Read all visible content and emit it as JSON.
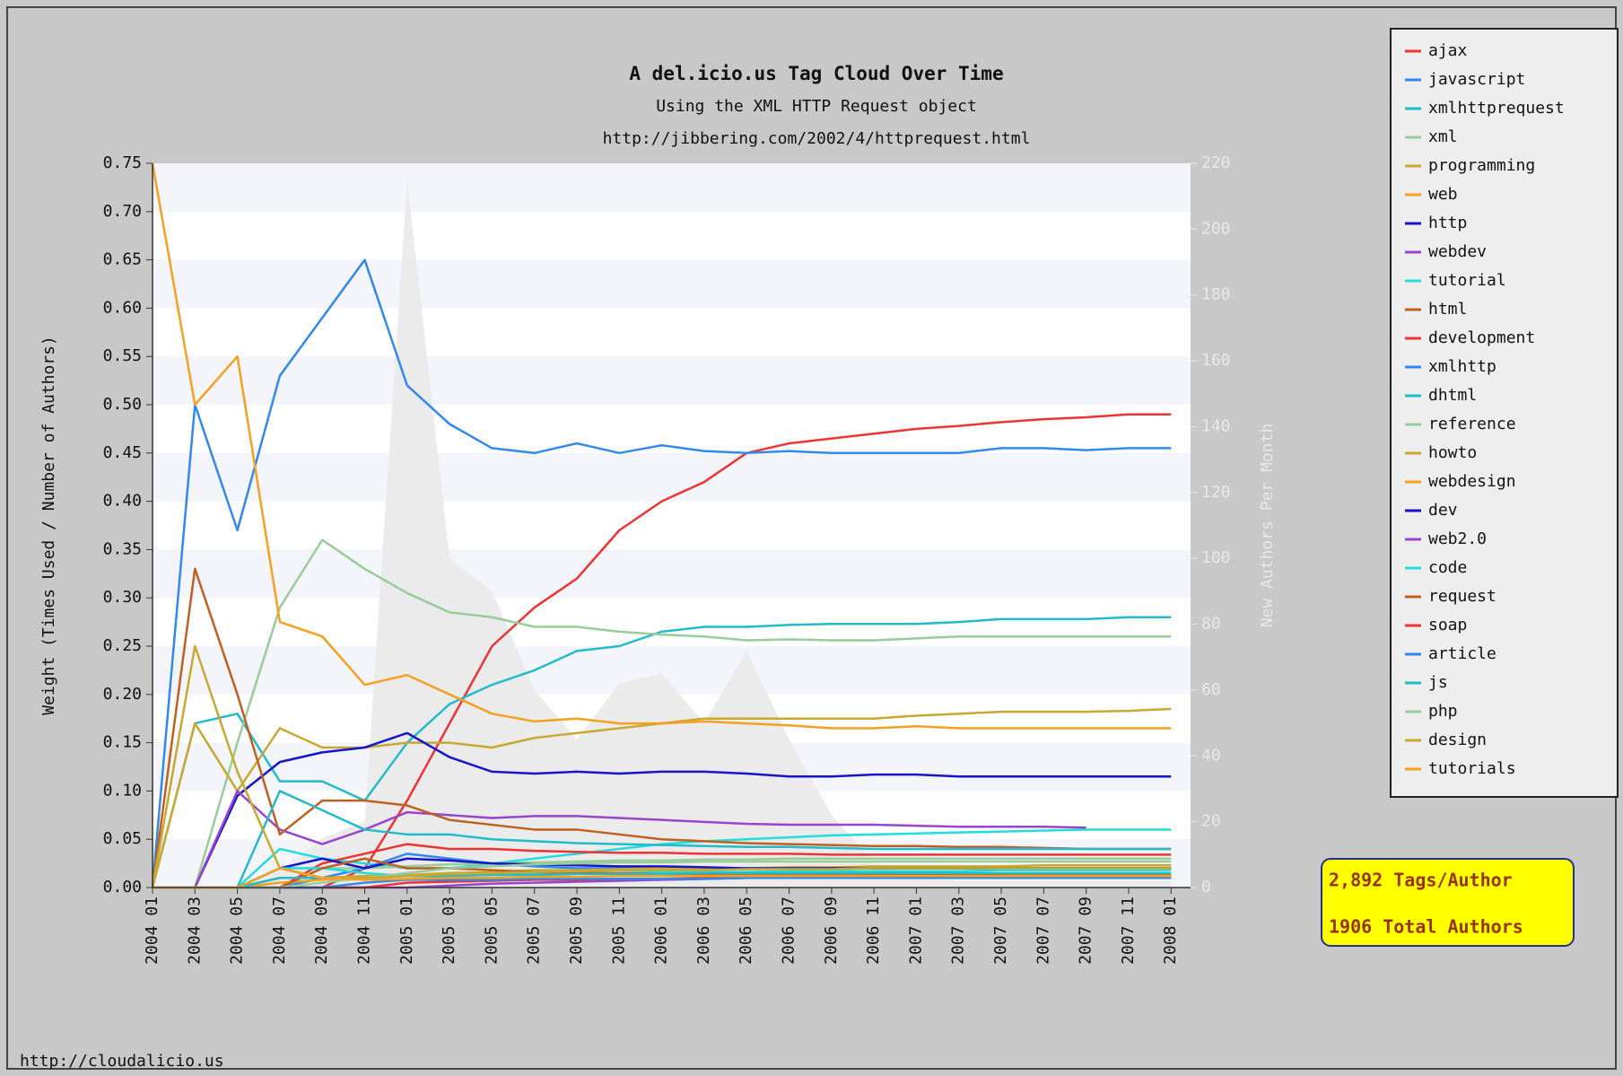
{
  "chart_data": {
    "type": "line",
    "title": "A del.icio.us Tag Cloud Over Time",
    "subtitle": "Using the XML HTTP Request object",
    "source_url": "http://jibbering.com/2002/4/httprequest.html",
    "ylabel": "Weight (Times Used / Number of Authors)",
    "y2label": "New Authors Per Month",
    "footer": "http://cloudalicio.us",
    "annotations": [
      "2,892 Tags/Author",
      "1906 Total Authors"
    ],
    "legend": "outside-right",
    "categories": [
      "2004 01",
      "2004 03",
      "2004 05",
      "2004 07",
      "2004 09",
      "2004 11",
      "2005 01",
      "2005 03",
      "2005 05",
      "2005 07",
      "2005 09",
      "2005 11",
      "2006 01",
      "2006 03",
      "2006 05",
      "2006 07",
      "2006 09",
      "2006 11",
      "2007 01",
      "2007 03",
      "2007 05",
      "2007 07",
      "2007 09",
      "2007 11",
      "2008 01"
    ],
    "ylim": [
      0,
      0.75
    ],
    "yticks": [
      {
        "value": 0,
        "label": "0.00"
      },
      {
        "value": 0.05,
        "label": "0.05"
      },
      {
        "value": 0.1,
        "label": "0.10"
      },
      {
        "value": 0.15,
        "label": "0.15"
      },
      {
        "value": 0.2,
        "label": "0.20"
      },
      {
        "value": 0.25,
        "label": "0.25"
      },
      {
        "value": 0.3,
        "label": "0.30"
      },
      {
        "value": 0.35,
        "label": "0.35"
      },
      {
        "value": 0.4,
        "label": "0.40"
      },
      {
        "value": 0.45,
        "label": "0.45"
      },
      {
        "value": 0.5,
        "label": "0.50"
      },
      {
        "value": 0.55,
        "label": "0.55"
      },
      {
        "value": 0.6,
        "label": "0.60"
      },
      {
        "value": 0.65,
        "label": "0.65"
      },
      {
        "value": 0.7,
        "label": "0.70"
      },
      {
        "value": 0.75,
        "label": "0.75"
      }
    ],
    "y2lim": [
      0,
      220
    ],
    "y2ticks": [
      0,
      20,
      40,
      60,
      80,
      100,
      120,
      140,
      160,
      180,
      200,
      220
    ],
    "area": {
      "color": "#ebebeb",
      "axis": "y2",
      "values": [
        0,
        0,
        0,
        5,
        15,
        20,
        215,
        100,
        90,
        60,
        45,
        62,
        65,
        50,
        72,
        45,
        22,
        8,
        3,
        2,
        2,
        2,
        2,
        2,
        2
      ]
    },
    "series": [
      {
        "name": "ajax",
        "color": "#ee3333",
        "values": [
          0,
          0,
          0,
          0,
          0,
          0.02,
          0.09,
          0.17,
          0.25,
          0.29,
          0.32,
          0.37,
          0.4,
          0.42,
          0.45,
          0.46,
          0.465,
          0.47,
          0.475,
          0.478,
          0.482,
          0.485,
          0.487,
          0.49,
          0.49
        ]
      },
      {
        "name": "javascript",
        "color": "#3388ee",
        "values": [
          0,
          0.5,
          0.37,
          0.53,
          0.59,
          0.65,
          0.52,
          0.48,
          0.455,
          0.45,
          0.46,
          0.45,
          0.458,
          0.452,
          0.45,
          0.452,
          0.45,
          0.45,
          0.45,
          0.45,
          0.455,
          0.455,
          0.453,
          0.455,
          0.455
        ]
      },
      {
        "name": "xmlhttprequest",
        "color": "#22bbcc",
        "values": [
          0,
          0.17,
          0.18,
          0.11,
          0.11,
          0.09,
          0.15,
          0.19,
          0.21,
          0.225,
          0.245,
          0.25,
          0.265,
          0.27,
          0.27,
          0.272,
          0.273,
          0.273,
          0.273,
          0.275,
          0.278,
          0.278,
          0.278,
          0.28,
          0.28
        ]
      },
      {
        "name": "xml",
        "color": "#99cc99",
        "values": [
          0,
          0,
          0.15,
          0.29,
          0.36,
          0.33,
          0.305,
          0.285,
          0.28,
          0.27,
          0.27,
          0.265,
          0.262,
          0.26,
          0.256,
          0.257,
          0.256,
          0.256,
          0.258,
          0.26,
          0.26,
          0.26,
          0.26,
          0.26,
          0.26
        ]
      },
      {
        "name": "programming",
        "color": "#c8a830",
        "values": [
          0,
          0.17,
          0.1,
          0.165,
          0.145,
          0.145,
          0.15,
          0.15,
          0.145,
          0.155,
          0.16,
          0.165,
          0.17,
          0.175,
          0.175,
          0.175,
          0.175,
          0.175,
          0.178,
          0.18,
          0.182,
          0.182,
          0.182,
          0.183,
          0.185
        ]
      },
      {
        "name": "web",
        "color": "#f5a020",
        "values": [
          0.75,
          0.5,
          0.55,
          0.275,
          0.26,
          0.21,
          0.22,
          0.2,
          0.18,
          0.172,
          0.175,
          0.17,
          0.17,
          0.172,
          0.17,
          0.168,
          0.165,
          0.165,
          0.167,
          0.165,
          0.165,
          0.165,
          0.165,
          0.165,
          0.165
        ]
      },
      {
        "name": "http",
        "color": "#1515cc",
        "values": [
          0,
          0,
          0.095,
          0.13,
          0.14,
          0.145,
          0.16,
          0.135,
          0.12,
          0.118,
          0.12,
          0.118,
          0.12,
          0.12,
          0.118,
          0.115,
          0.115,
          0.117,
          0.117,
          0.115,
          0.115,
          0.115,
          0.115,
          0.115,
          0.115
        ]
      },
      {
        "name": "webdev",
        "color": "#9944cc",
        "values": [
          0,
          0,
          0.1,
          0.06,
          0.045,
          0.06,
          0.078,
          0.075,
          0.072,
          0.074,
          0.074,
          0.072,
          0.07,
          0.068,
          0.066,
          0.065,
          0.065,
          0.065,
          0.064,
          0.063,
          0.063,
          0.063,
          0.062,
          null,
          null
        ]
      },
      {
        "name": "tutorial",
        "color": "#22dddd",
        "values": [
          0,
          0,
          0,
          0.04,
          0.03,
          0.025,
          0.02,
          0.02,
          0.025,
          0.03,
          0.035,
          0.04,
          0.045,
          0.048,
          0.05,
          0.052,
          0.054,
          0.055,
          0.056,
          0.057,
          0.058,
          0.059,
          0.06,
          0.06,
          0.06
        ]
      },
      {
        "name": "html",
        "color": "#c06020",
        "values": [
          0,
          0.33,
          0.2,
          0.055,
          0.09,
          0.09,
          0.085,
          0.07,
          0.065,
          0.06,
          0.06,
          0.055,
          0.05,
          0.048,
          0.046,
          0.045,
          0.044,
          0.043,
          0.043,
          0.042,
          0.042,
          0.041,
          0.04,
          0.04,
          0.04
        ]
      },
      {
        "name": "development",
        "color": "#ee3333",
        "values": [
          0,
          0,
          0,
          0,
          0.025,
          0.035,
          0.045,
          0.04,
          0.04,
          0.038,
          0.037,
          0.036,
          0.036,
          0.035,
          0.035,
          0.035,
          0.034,
          0.034,
          0.034,
          0.034,
          0.034,
          0.034,
          0.034,
          0.034,
          0.034
        ]
      },
      {
        "name": "xmlhttp",
        "color": "#3388ee",
        "values": [
          0,
          0,
          0,
          0,
          0.01,
          0.02,
          0.035,
          0.03,
          0.025,
          0.022,
          0.02,
          0.02,
          0.02,
          0.02,
          0.02,
          0.02,
          0.02,
          0.02,
          0.02,
          0.02,
          0.02,
          0.02,
          0.02,
          0.02,
          0.02
        ]
      },
      {
        "name": "dhtml",
        "color": "#22bbcc",
        "values": [
          0,
          0,
          0,
          0.1,
          0.08,
          0.06,
          0.055,
          0.055,
          0.05,
          0.048,
          0.046,
          0.045,
          0.044,
          0.043,
          0.042,
          0.042,
          0.041,
          0.04,
          0.04,
          0.04,
          0.04,
          0.04,
          0.04,
          0.04,
          0.04
        ]
      },
      {
        "name": "reference",
        "color": "#99cc99",
        "values": [
          0,
          0,
          0,
          0.02,
          0.02,
          0.02,
          0.022,
          0.024,
          0.025,
          0.026,
          0.027,
          0.028,
          0.028,
          0.029,
          0.029,
          0.03,
          0.03,
          0.03,
          0.03,
          0.03,
          0.03,
          0.03,
          0.03,
          0.03,
          0.03
        ]
      },
      {
        "name": "howto",
        "color": "#c8a830",
        "values": [
          0,
          0,
          0,
          0.01,
          0.01,
          0.012,
          0.013,
          0.015,
          0.016,
          0.018,
          0.018,
          0.019,
          0.02,
          0.02,
          0.02,
          0.021,
          0.021,
          0.022,
          0.022,
          0.022,
          0.022,
          0.023,
          0.023,
          0.023,
          0.023
        ]
      },
      {
        "name": "webdesign",
        "color": "#f5a020",
        "values": [
          0,
          0,
          0,
          0.005,
          0.008,
          0.01,
          0.012,
          0.014,
          0.015,
          0.016,
          0.017,
          0.018,
          0.018,
          0.019,
          0.019,
          0.02,
          0.02,
          0.02,
          0.02,
          0.02,
          0.02,
          0.02,
          0.02,
          0.02,
          0.02
        ]
      },
      {
        "name": "dev",
        "color": "#1515cc",
        "values": [
          0,
          0,
          0,
          0.02,
          0.03,
          0.02,
          0.03,
          0.028,
          0.025,
          0.024,
          0.023,
          0.022,
          0.022,
          0.021,
          0.02,
          0.02,
          0.02,
          0.02,
          0.02,
          0.02,
          0.02,
          0.02,
          0.02,
          0.02,
          0.02
        ]
      },
      {
        "name": "web2.0",
        "color": "#9944cc",
        "values": [
          0,
          0,
          0,
          0,
          0,
          0,
          0,
          0.002,
          0.004,
          0.005,
          0.006,
          0.007,
          0.008,
          0.009,
          0.01,
          0.01,
          0.011,
          0.011,
          0.012,
          0.012,
          0.012,
          0.013,
          0.013,
          0.013,
          0.013
        ]
      },
      {
        "name": "code",
        "color": "#22dddd",
        "values": [
          0,
          0,
          0,
          0.02,
          0.02,
          0.015,
          0.012,
          0.012,
          0.013,
          0.014,
          0.015,
          0.015,
          0.016,
          0.016,
          0.016,
          0.017,
          0.017,
          0.017,
          0.017,
          0.017,
          0.018,
          0.018,
          0.018,
          0.018,
          0.018
        ]
      },
      {
        "name": "request",
        "color": "#c06020",
        "values": [
          0,
          0,
          0,
          0,
          0.02,
          0.03,
          0.02,
          0.02,
          0.018,
          0.016,
          0.015,
          0.015,
          0.014,
          0.014,
          0.014,
          0.013,
          0.013,
          0.013,
          0.013,
          0.013,
          0.013,
          0.013,
          0.013,
          0.013,
          0.013
        ]
      },
      {
        "name": "soap",
        "color": "#ee3333",
        "values": [
          0,
          0,
          0,
          0,
          0,
          0,
          0.005,
          0.006,
          0.007,
          0.008,
          0.008,
          0.009,
          0.009,
          0.01,
          0.01,
          0.01,
          0.01,
          0.01,
          0.01,
          0.01,
          0.01,
          0.01,
          0.01,
          0.01,
          0.01
        ]
      },
      {
        "name": "article",
        "color": "#3388ee",
        "values": [
          0,
          0,
          0,
          0,
          0,
          0.005,
          0.008,
          0.008,
          0.008,
          0.009,
          0.009,
          0.009,
          0.009,
          0.009,
          0.01,
          0.01,
          0.01,
          0.01,
          0.01,
          0.01,
          0.01,
          0.01,
          0.01,
          0.01,
          0.01
        ]
      },
      {
        "name": "js",
        "color": "#22bbcc",
        "values": [
          0,
          0,
          0,
          0.01,
          0.01,
          0.01,
          0.012,
          0.012,
          0.013,
          0.013,
          0.014,
          0.014,
          0.014,
          0.015,
          0.015,
          0.015,
          0.015,
          0.015,
          0.015,
          0.015,
          0.015,
          0.015,
          0.015,
          0.015,
          0.015
        ]
      },
      {
        "name": "php",
        "color": "#99cc99",
        "values": [
          0,
          0,
          0,
          0,
          0.005,
          0.01,
          0.015,
          0.02,
          0.022,
          0.024,
          0.025,
          0.026,
          0.026,
          0.027,
          0.027,
          0.027,
          0.027,
          0.027,
          0.027,
          0.027,
          0.027,
          0.027,
          0.027,
          0.027,
          0.027
        ]
      },
      {
        "name": "design",
        "color": "#c8a830",
        "values": [
          0,
          0.25,
          0.12,
          0.02,
          0.01,
          0.01,
          0.012,
          0.014,
          0.015,
          0.016,
          0.017,
          0.018,
          0.018,
          0.018,
          0.019,
          0.019,
          0.019,
          0.02,
          0.02,
          0.02,
          0.02,
          0.02,
          0.02,
          0.02,
          0.02
        ]
      },
      {
        "name": "tutorials",
        "color": "#f5a020",
        "values": [
          0,
          0,
          0,
          0.02,
          0.01,
          0.008,
          0.009,
          0.01,
          0.01,
          0.011,
          0.011,
          0.012,
          0.012,
          0.012,
          0.012,
          0.012,
          0.012,
          0.012,
          0.012,
          0.012,
          0.012,
          0.012,
          0.012,
          0.012,
          0.012
        ]
      }
    ]
  }
}
